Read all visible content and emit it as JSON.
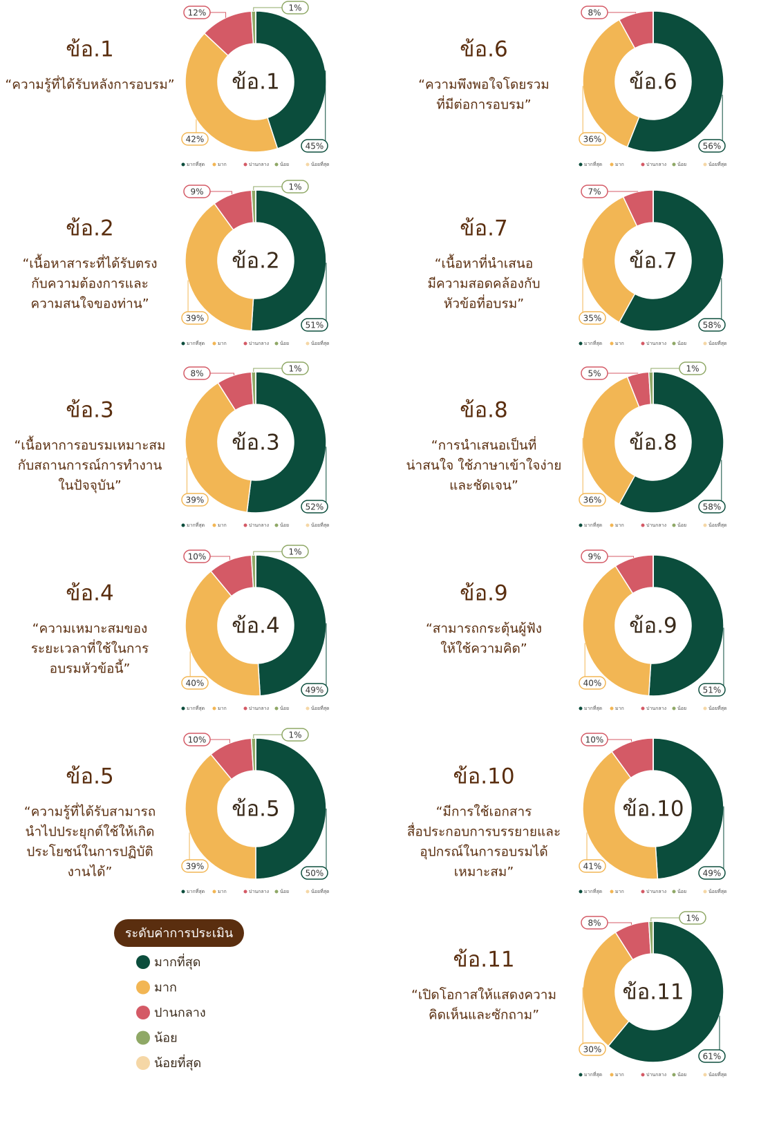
{
  "chart_data": [
    {
      "type": "pie",
      "title": "ข้อ.1",
      "subtitle": [
        "“ความรู้ที่ได้รับหลังการอบรม”"
      ],
      "categories": [
        "มากที่สุด",
        "มาก",
        "ปานกลาง",
        "น้อย",
        "น้อยที่สุด"
      ],
      "colors": [
        "#0b4d3c",
        "#f2b654",
        "#d45a66",
        "#8fa866",
        "#f5d7a6"
      ],
      "values": [
        45,
        42,
        12,
        1,
        0
      ],
      "value_labels": [
        "45%",
        "42%",
        "12%",
        "1%",
        null
      ]
    },
    {
      "type": "pie",
      "title": "ข้อ.2",
      "subtitle": [
        "“เนื้อหาสาระที่ได้รับตรง",
        "กับความต้องการและ",
        "ความสนใจของท่าน”"
      ],
      "categories": [
        "มากที่สุด",
        "มาก",
        "ปานกลาง",
        "น้อย",
        "น้อยที่สุด"
      ],
      "colors": [
        "#0b4d3c",
        "#f2b654",
        "#d45a66",
        "#8fa866",
        "#f5d7a6"
      ],
      "values": [
        51,
        39,
        9,
        1,
        0
      ],
      "value_labels": [
        "51%",
        "39%",
        "9%",
        "1%",
        null
      ]
    },
    {
      "type": "pie",
      "title": "ข้อ.3",
      "subtitle": [
        "“เนื้อหาการอบรมเหมาะสม",
        "กับสถานการณ์การทำงาน",
        "ในปัจจุบัน”"
      ],
      "categories": [
        "มากที่สุด",
        "มาก",
        "ปานกลาง",
        "น้อย",
        "น้อยที่สุด"
      ],
      "colors": [
        "#0b4d3c",
        "#f2b654",
        "#d45a66",
        "#8fa866",
        "#f5d7a6"
      ],
      "values": [
        52,
        39,
        8,
        1,
        0
      ],
      "value_labels": [
        "52%",
        "39%",
        "8%",
        "1%",
        null
      ]
    },
    {
      "type": "pie",
      "title": "ข้อ.4",
      "subtitle": [
        "“ความเหมาะสมของ",
        "ระยะเวลาที่ใช้ในการ",
        "อบรมหัวข้อนี้”"
      ],
      "categories": [
        "มากที่สุด",
        "มาก",
        "ปานกลาง",
        "น้อย",
        "น้อยที่สุด"
      ],
      "colors": [
        "#0b4d3c",
        "#f2b654",
        "#d45a66",
        "#8fa866",
        "#f5d7a6"
      ],
      "values": [
        49,
        40,
        10,
        1,
        0
      ],
      "value_labels": [
        "49%",
        "40%",
        "10%",
        "1%",
        null
      ]
    },
    {
      "type": "pie",
      "title": "ข้อ.5",
      "subtitle": [
        "“ความรู้ที่ได้รับสามารถ",
        "นำไปประยุกต์ใช้ให้เกิด",
        "ประโยชน์ในการปฏิบัติ",
        "งานได้”"
      ],
      "categories": [
        "มากที่สุด",
        "มาก",
        "ปานกลาง",
        "น้อย",
        "น้อยที่สุด"
      ],
      "colors": [
        "#0b4d3c",
        "#f2b654",
        "#d45a66",
        "#8fa866",
        "#f5d7a6"
      ],
      "values": [
        50,
        39,
        10,
        1,
        0
      ],
      "value_labels": [
        "50%",
        "39%",
        "10%",
        "1%",
        null
      ]
    },
    {
      "type": "pie",
      "title": "ข้อ.6",
      "subtitle": [
        "“ความพึงพอใจโดยรวม",
        "ที่มีต่อการอบรม”"
      ],
      "categories": [
        "มากที่สุด",
        "มาก",
        "ปานกลาง",
        "น้อย",
        "น้อยที่สุด"
      ],
      "colors": [
        "#0b4d3c",
        "#f2b654",
        "#d45a66",
        "#8fa866",
        "#f5d7a6"
      ],
      "values": [
        56,
        36,
        8,
        0,
        0
      ],
      "value_labels": [
        "56%",
        "36%",
        "8%",
        null,
        null
      ]
    },
    {
      "type": "pie",
      "title": "ข้อ.7",
      "subtitle": [
        "“เนื้อหาที่นำเสนอ",
        "มีความสอดคล้องกับ",
        "หัวข้อที่อบรม”"
      ],
      "categories": [
        "มากที่สุด",
        "มาก",
        "ปานกลาง",
        "น้อย",
        "น้อยที่สุด"
      ],
      "colors": [
        "#0b4d3c",
        "#f2b654",
        "#d45a66",
        "#8fa866",
        "#f5d7a6"
      ],
      "values": [
        58,
        35,
        7,
        0,
        0
      ],
      "value_labels": [
        "58%",
        "35%",
        "7%",
        null,
        null
      ]
    },
    {
      "type": "pie",
      "title": "ข้อ.8",
      "subtitle": [
        "“การนำเสนอเป็นที่",
        "น่าสนใจ ใช้ภาษาเข้าใจง่าย",
        "และชัดเจน”"
      ],
      "categories": [
        "มากที่สุด",
        "มาก",
        "ปานกลาง",
        "น้อย",
        "น้อยที่สุด"
      ],
      "colors": [
        "#0b4d3c",
        "#f2b654",
        "#d45a66",
        "#8fa866",
        "#f5d7a6"
      ],
      "values": [
        58,
        36,
        5,
        1,
        0
      ],
      "value_labels": [
        "58%",
        "36%",
        "5%",
        "1%",
        null
      ]
    },
    {
      "type": "pie",
      "title": "ข้อ.9",
      "subtitle": [
        "“สามารถกระตุ้นผู้ฟัง",
        "ให้ใช้ความคิด”"
      ],
      "categories": [
        "มากที่สุด",
        "มาก",
        "ปานกลาง",
        "น้อย",
        "น้อยที่สุด"
      ],
      "colors": [
        "#0b4d3c",
        "#f2b654",
        "#d45a66",
        "#8fa866",
        "#f5d7a6"
      ],
      "values": [
        51,
        40,
        9,
        0,
        0
      ],
      "value_labels": [
        "51%",
        "40%",
        "9%",
        null,
        null
      ]
    },
    {
      "type": "pie",
      "title": "ข้อ.10",
      "subtitle": [
        "“มีการใช้เอกสาร",
        "สื่อประกอบการบรรยายและ",
        "อุปกรณ์ในการอบรมได้",
        "เหมาะสม”"
      ],
      "categories": [
        "มากที่สุด",
        "มาก",
        "ปานกลาง",
        "น้อย",
        "น้อยที่สุด"
      ],
      "colors": [
        "#0b4d3c",
        "#f2b654",
        "#d45a66",
        "#8fa866",
        "#f5d7a6"
      ],
      "values": [
        49,
        41,
        10,
        0,
        0
      ],
      "value_labels": [
        "49%",
        "41%",
        "10%",
        null,
        null
      ]
    },
    {
      "type": "pie",
      "title": "ข้อ.11",
      "subtitle": [
        "“เปิดโอกาสให้แสดงความ",
        "คิดเห็นและซักถาม”"
      ],
      "categories": [
        "มากที่สุด",
        "มาก",
        "ปานกลาง",
        "น้อย",
        "น้อยที่สุด"
      ],
      "colors": [
        "#0b4d3c",
        "#f2b654",
        "#d45a66",
        "#8fa866",
        "#f5d7a6"
      ],
      "values": [
        61,
        30,
        8,
        1,
        0
      ],
      "value_labels": [
        "61%",
        "30%",
        "8%",
        "1%",
        null
      ]
    }
  ],
  "legend": {
    "title": "ระดับค่าการประเมิน",
    "items": [
      "มากที่สุด",
      "มาก",
      "ปานกลาง",
      "น้อย",
      "น้อยที่สุด"
    ],
    "colors": [
      "#0b4d3c",
      "#f2b654",
      "#d45a66",
      "#8fa866",
      "#f5d7a6"
    ]
  }
}
